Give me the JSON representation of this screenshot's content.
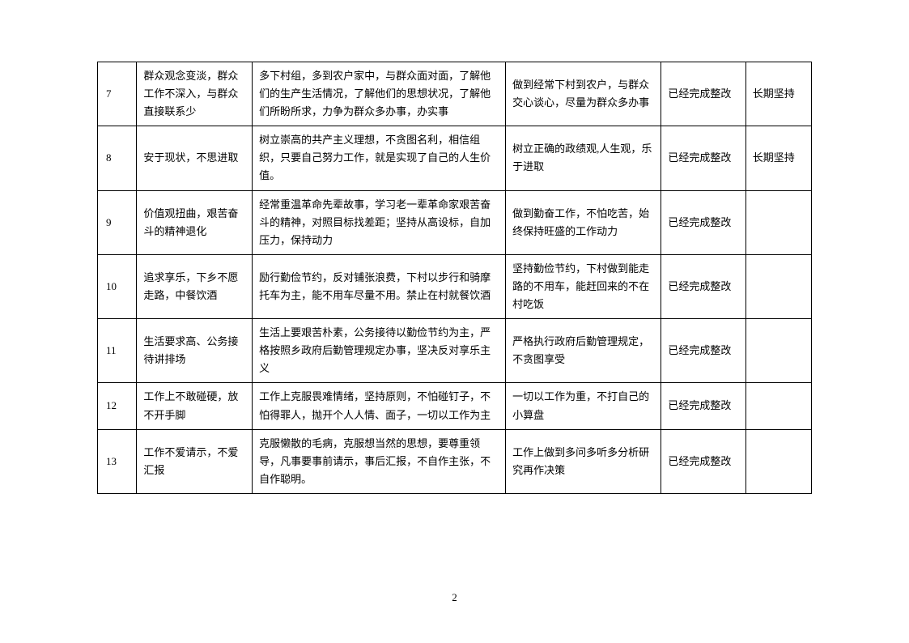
{
  "table": {
    "rows": [
      {
        "num": "7",
        "issue": "群众观念变淡，群众工作不深入，与群众直接联系少",
        "measure": "多下村组，多到农户家中，与群众面对面，了解他们的生产生活情况，了解他们的思想状况，了解他们所盼所求，力争为群众多办事，办实事",
        "goal": "做到经常下村到农户，与群众交心谈心，尽量为群众多办事",
        "status": "已经完成整改",
        "duration": "长期坚持"
      },
      {
        "num": "8",
        "issue": "安于现状，不思进取",
        "measure": "树立崇高的共产主义理想，不贪图名利，相信组织，只要自己努力工作，就是实现了自己的人生价值。",
        "goal": "树立正确的政绩观,人生观，乐于进取",
        "status": "已经完成整改",
        "duration": "长期坚持"
      },
      {
        "num": "9",
        "issue": "价值观扭曲，艰苦奋斗的精神退化",
        "measure": "经常重温革命先辈故事，学习老一辈革命家艰苦奋斗的精神，对照目标找差距；坚持从高设标，自加压力，保持动力",
        "goal": "做到勤奋工作，不怕吃苦，始终保持旺盛的工作动力",
        "status": "已经完成整改",
        "duration": ""
      },
      {
        "num": "10",
        "issue": "追求享乐，下乡不愿走路，中餐饮酒",
        "measure": "励行勤俭节约，反对铺张浪费，下村以步行和骑摩托车为主，能不用车尽量不用。禁止在村就餐饮酒",
        "goal": "坚持勤俭节约，下村做到能走路的不用车，能赶回来的不在村吃饭",
        "status": "已经完成整改",
        "duration": ""
      },
      {
        "num": "11",
        "issue": "生活要求高、公务接待讲排场",
        "measure": "生活上要艰苦朴素，公务接待以勤俭节约为主，严格按照乡政府后勤管理规定办事，坚决反对享乐主义",
        "goal": "严格执行政府后勤管理规定，不贪图享受",
        "status": "已经完成整改",
        "duration": ""
      },
      {
        "num": "12",
        "issue": "工作上不敢碰硬，放不开手脚",
        "measure": "工作上克服畏难情绪，坚持原则，不怕碰钉子，不怕得罪人，抛开个人人情、面子，一切以工作为主",
        "goal": "一切以工作为重，不打自己的小算盘",
        "status": "已经完成整改",
        "duration": ""
      },
      {
        "num": "13",
        "issue": "工作不爱请示，不爱汇报",
        "measure": "克服懒散的毛病，克服想当然的思想，要尊重领导，凡事要事前请示，事后汇报，不自作主张，不自作聪明。",
        "goal": "工作上做到多问多听多分析研究再作决策",
        "status": "已经完成整改",
        "duration": ""
      }
    ]
  },
  "pageNumber": "2"
}
